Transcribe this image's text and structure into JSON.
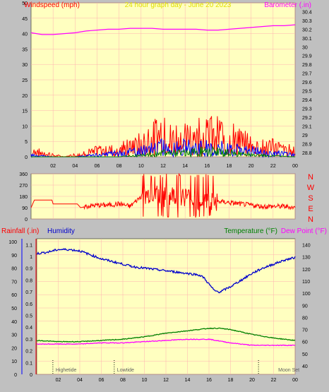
{
  "colors": {
    "background": "#c0c0c0",
    "plot_bg": "#ffffc0",
    "grid": "#ffb0b0",
    "wind_red": "#ff0000",
    "wind_blue": "#0000ff",
    "wind_green": "#008000",
    "barometer": "#ff00ff",
    "humidity": "#0000cc",
    "temperature": "#008000",
    "dewpoint": "#ff00ff",
    "title": "#e0e000"
  },
  "chart_data": [
    {
      "type": "line",
      "title": "24 hour graph day - June 20 2023",
      "ylabel": "Windspeed (mph)",
      "y2label": "Barometer (.in)",
      "x_ticks": [
        "02",
        "04",
        "06",
        "08",
        "10",
        "12",
        "14",
        "16",
        "18",
        "20",
        "22",
        "00"
      ],
      "xlim": [
        0,
        24
      ],
      "ylim": [
        0,
        50
      ],
      "y_ticks": [
        0,
        5,
        10,
        15,
        20,
        25,
        30,
        35,
        40,
        45,
        50
      ],
      "y2lim": [
        28.75,
        30.5
      ],
      "y2_ticks": [
        "28.8",
        "28.9",
        "29",
        "29.1",
        "29.2",
        "29.3",
        "29.4",
        "29.5",
        "29.6",
        "29.7",
        "29.8",
        "29.9",
        "30",
        "30.1",
        "30.2",
        "30.3",
        "30.4"
      ],
      "grid": true,
      "series": [
        {
          "axis": "y2",
          "x": [
            0,
            1,
            2,
            3,
            4,
            5,
            6,
            7,
            8,
            9,
            10,
            11,
            12,
            13,
            14,
            15,
            16,
            17,
            18,
            19,
            20,
            21,
            22,
            23,
            24
          ],
          "values": [
            30.16,
            30.14,
            30.14,
            30.15,
            30.16,
            30.18,
            30.19,
            30.2,
            30.2,
            30.21,
            30.21,
            30.21,
            30.2,
            30.2,
            30.2,
            30.2,
            30.19,
            30.19,
            30.2,
            30.21,
            30.22,
            30.23,
            30.24,
            30.24,
            30.25
          ]
        },
        {
          "x": [
            0,
            1,
            2,
            3,
            4,
            5,
            6,
            7,
            8,
            9,
            10,
            11,
            12,
            13,
            14,
            15,
            16,
            17,
            18,
            19,
            20,
            21,
            22,
            23,
            24
          ],
          "values": [
            3,
            2,
            1,
            0,
            1,
            2,
            3,
            4,
            4,
            5,
            7,
            10,
            11,
            10,
            10,
            11,
            12,
            11,
            10,
            8,
            6,
            5,
            5,
            4,
            3
          ]
        },
        {
          "x": [
            0,
            2,
            4,
            6,
            8,
            10,
            11,
            12,
            14,
            16,
            18,
            20,
            22,
            24
          ],
          "values": [
            1,
            0,
            0,
            1,
            2,
            3,
            4,
            5,
            5,
            5,
            4,
            3,
            2,
            1
          ]
        },
        {
          "x": [
            0,
            4,
            8,
            10,
            12,
            14,
            16,
            18,
            20,
            24
          ],
          "values": [
            0,
            0,
            0,
            1,
            2,
            2,
            3,
            2,
            1,
            0
          ]
        }
      ]
    },
    {
      "type": "line",
      "ylim": [
        0,
        360
      ],
      "y_ticks": [
        0,
        90,
        180,
        270,
        360
      ],
      "x_ticks": [
        "02",
        "04",
        "06",
        "08",
        "10",
        "12",
        "14",
        "16",
        "18",
        "20",
        "22",
        "00"
      ],
      "xlim": [
        0,
        24
      ],
      "direction_labels": [
        "N",
        "W",
        "S",
        "E",
        "N"
      ],
      "series": [
        {
          "x": [
            0,
            0.3,
            1.9,
            2.0,
            4.2,
            4.5,
            5.0,
            6.0,
            7.0,
            8.0,
            9.0,
            10.0,
            11.0,
            12.0,
            13.0,
            14.0,
            15.0,
            16.0,
            17.0,
            18.0,
            19.0,
            20.0,
            21.0,
            22.0,
            23.0,
            24.0
          ],
          "values": [
            90,
            150,
            150,
            120,
            120,
            90,
            100,
            110,
            110,
            120,
            100,
            180,
            200,
            170,
            190,
            180,
            150,
            140,
            140,
            130,
            120,
            110,
            100,
            100,
            100,
            90
          ]
        }
      ]
    },
    {
      "type": "line",
      "ylabel": "Rainfall (.in)",
      "ylabel2": "Humidity",
      "y2label": "Temperature (°F)",
      "y2label2": "Dew Point (°F)",
      "x_ticks": [
        "02",
        "04",
        "06",
        "08",
        "10",
        "12",
        "14",
        "16",
        "18",
        "20",
        "22",
        "00"
      ],
      "xlim": [
        0,
        24
      ],
      "humidity_ticks": [
        0,
        10,
        20,
        30,
        40,
        50,
        60,
        70,
        80,
        90,
        100
      ],
      "rain_ticks": [
        "0",
        "0.1",
        "0.2",
        "0.3",
        "0.4",
        "0.5",
        "0.6",
        "0.7",
        "0.8",
        "0.9",
        "1",
        "1.1"
      ],
      "rain_lim": [
        0,
        1.15
      ],
      "temp_ticks": [
        "40",
        "50",
        "60",
        "70",
        "80",
        "90",
        "100",
        "110",
        "120",
        "130",
        "140"
      ],
      "temp_lim": [
        33,
        145
      ],
      "annotations": [
        {
          "text": "Highetide",
          "x": 1.5
        },
        {
          "text": "Lowtide",
          "x": 7.2
        },
        {
          "text": "Moon Set",
          "x": 20.6
        }
      ],
      "series": [
        {
          "axis": "humidity",
          "x": [
            0,
            1,
            2,
            3,
            4,
            5,
            6,
            7,
            8,
            9,
            10,
            11,
            12,
            13,
            14,
            15,
            15.5,
            16,
            16.5,
            17,
            18,
            19,
            20,
            21,
            22,
            23,
            24
          ],
          "values": [
            91,
            92,
            94,
            94,
            93,
            90,
            87,
            85,
            83,
            81,
            80,
            79,
            78,
            77,
            76,
            75,
            73,
            68,
            63,
            62,
            66,
            71,
            76,
            80,
            83,
            86,
            88
          ]
        },
        {
          "axis": "temp",
          "x": [
            0,
            2,
            4,
            6,
            8,
            10,
            12,
            14,
            16,
            17,
            18,
            20,
            22,
            24
          ],
          "values": [
            61,
            60,
            60,
            61,
            62,
            64,
            67,
            69,
            71,
            71,
            70,
            66,
            63,
            61
          ]
        },
        {
          "axis": "temp",
          "x": [
            0,
            2,
            4,
            6,
            8,
            10,
            12,
            14,
            16,
            18,
            20,
            22,
            24
          ],
          "values": [
            58,
            58,
            58,
            59,
            59,
            60,
            61,
            62,
            62,
            59,
            57,
            57,
            57
          ]
        }
      ]
    }
  ]
}
